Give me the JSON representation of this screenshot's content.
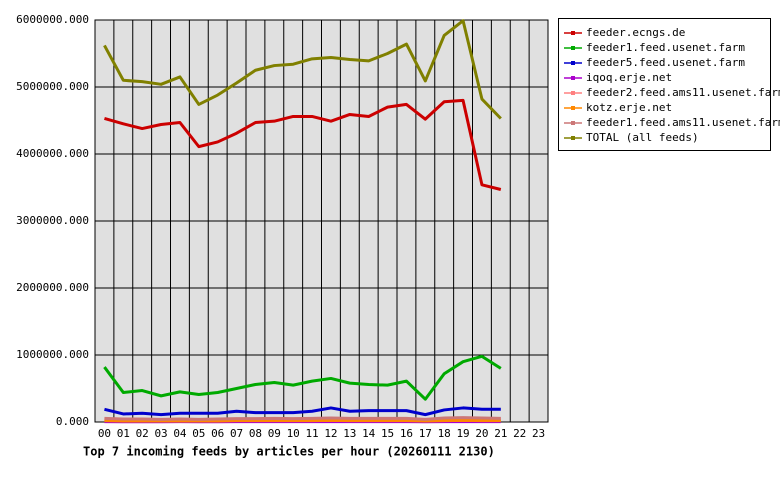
{
  "chart_data": {
    "type": "line",
    "title": "Top 7 incoming feeds by articles per hour (20260111 2130)",
    "categories": [
      "00",
      "01",
      "02",
      "03",
      "04",
      "05",
      "06",
      "07",
      "08",
      "09",
      "10",
      "11",
      "12",
      "13",
      "14",
      "15",
      "16",
      "17",
      "18",
      "19",
      "20",
      "21",
      "22",
      "23"
    ],
    "ylim": [
      0,
      6000000
    ],
    "yticks": [
      {
        "value": 0,
        "label": "0.000"
      },
      {
        "value": 1000000,
        "label": "1000000.000"
      },
      {
        "value": 2000000,
        "label": "2000000.000"
      },
      {
        "value": 3000000,
        "label": "3000000.000"
      },
      {
        "value": 4000000,
        "label": "4000000.000"
      },
      {
        "value": 5000000,
        "label": "5000000.000"
      },
      {
        "value": 6000000,
        "label": "6000000.000"
      }
    ],
    "grid": true,
    "series": [
      {
        "name": "feeder.ecngs.de",
        "color": "#cc0000",
        "values": [
          4530000,
          4450000,
          4380000,
          4440000,
          4470000,
          4110000,
          4180000,
          4310000,
          4470000,
          4490000,
          4560000,
          4560000,
          4490000,
          4590000,
          4560000,
          4700000,
          4740000,
          4520000,
          4780000,
          4800000,
          3540000,
          3470000,
          null,
          null
        ]
      },
      {
        "name": "feeder1.feed.usenet.farm",
        "color": "#00aa00",
        "values": [
          820000,
          440000,
          470000,
          390000,
          450000,
          410000,
          440000,
          500000,
          560000,
          590000,
          550000,
          610000,
          650000,
          580000,
          560000,
          550000,
          610000,
          340000,
          720000,
          900000,
          980000,
          800000,
          null,
          null
        ]
      },
      {
        "name": "feeder5.feed.usenet.farm",
        "color": "#0000cc",
        "values": [
          190000,
          120000,
          130000,
          110000,
          130000,
          130000,
          130000,
          160000,
          140000,
          140000,
          140000,
          160000,
          210000,
          160000,
          170000,
          170000,
          170000,
          110000,
          180000,
          210000,
          190000,
          190000,
          null,
          null
        ]
      },
      {
        "name": "iqoq.erje.net",
        "color": "#aa00cc",
        "values": [
          5000,
          4000,
          4000,
          4000,
          5000,
          4000,
          4000,
          5000,
          5000,
          5000,
          5000,
          5000,
          6000,
          5000,
          5000,
          5000,
          5000,
          4000,
          5000,
          6000,
          5000,
          5000,
          null,
          null
        ]
      },
      {
        "name": "feeder2.feed.ams11.usenet.farm",
        "color": "#ff8080",
        "values": [
          40000,
          35000,
          35000,
          30000,
          35000,
          30000,
          35000,
          40000,
          40000,
          40000,
          40000,
          45000,
          50000,
          40000,
          40000,
          40000,
          45000,
          30000,
          45000,
          50000,
          45000,
          45000,
          null,
          null
        ]
      },
      {
        "name": "kotz.erje.net",
        "color": "#ff8800",
        "values": [
          20000,
          15000,
          15000,
          15000,
          15000,
          15000,
          15000,
          20000,
          20000,
          20000,
          20000,
          20000,
          25000,
          20000,
          20000,
          20000,
          20000,
          15000,
          20000,
          25000,
          20000,
          20000,
          null,
          null
        ]
      },
      {
        "name": "feeder1.feed.ams11.usenet.farm",
        "color": "#cc7777",
        "values": [
          55000,
          45000,
          45000,
          40000,
          45000,
          40000,
          45000,
          50000,
          50000,
          55000,
          50000,
          55000,
          60000,
          55000,
          55000,
          55000,
          55000,
          40000,
          60000,
          65000,
          60000,
          55000,
          null,
          null
        ]
      },
      {
        "name": "TOTAL (all feeds)",
        "color": "#808000",
        "values": [
          5620000,
          5100000,
          5080000,
          5040000,
          5150000,
          4740000,
          4880000,
          5060000,
          5250000,
          5320000,
          5340000,
          5420000,
          5440000,
          5410000,
          5390000,
          5500000,
          5640000,
          5090000,
          5770000,
          5990000,
          4820000,
          4530000,
          null,
          null
        ]
      }
    ]
  }
}
